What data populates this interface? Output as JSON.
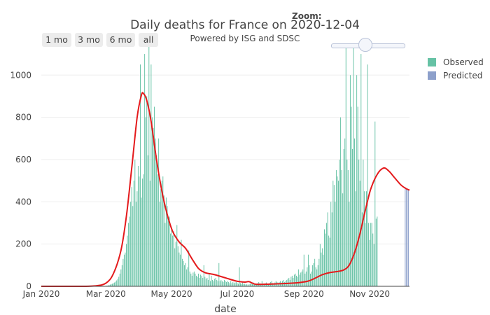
{
  "title": "Daily deaths for France on 2020-12-04",
  "subtitle": "Powered by ISG and SDSC",
  "zoom": {
    "label": "Zoom:",
    "level": 0.5
  },
  "range_buttons": [
    "1 mo",
    "3 mo",
    "6 mo",
    "all"
  ],
  "legend": [
    {
      "label": "Observed",
      "color": "#66c2a5"
    },
    {
      "label": "Predicted",
      "color": "#8da0cb"
    }
  ],
  "colors": {
    "observed": "#66c2a5",
    "predicted": "#8da0cb",
    "fit": "#e41a1c",
    "grid": "#eeeeee"
  },
  "chart_data": {
    "type": "bar",
    "xlabel": "date",
    "x_ticks": [
      "Jan 2020",
      "Mar 2020",
      "May 2020",
      "Jul 2020",
      "Sep 2020",
      "Nov 2020"
    ],
    "x_tick_dates": [
      "2020-01-01",
      "2020-03-01",
      "2020-05-01",
      "2020-07-01",
      "2020-09-01",
      "2020-11-01"
    ],
    "y_ticks": [
      "0",
      "200",
      "400",
      "600",
      "800",
      "1000"
    ],
    "y_tick_values": [
      0,
      200,
      400,
      600,
      800,
      1000
    ],
    "ylim": [
      0,
      1150
    ],
    "xlim": [
      "2020-01-01",
      "2020-12-08"
    ],
    "observed": {
      "name": "Observed",
      "start_date": "2020-03-01",
      "values": [
        2,
        3,
        4,
        6,
        8,
        10,
        12,
        15,
        18,
        22,
        28,
        35,
        45,
        60,
        80,
        100,
        130,
        150,
        160,
        200,
        240,
        300,
        330,
        400,
        470,
        380,
        500,
        600,
        400,
        450,
        570,
        520,
        1050,
        420,
        510,
        530,
        1100,
        800,
        900,
        620,
        1150,
        500,
        1050,
        800,
        750,
        850,
        700,
        620,
        530,
        700,
        400,
        460,
        500,
        520,
        430,
        300,
        420,
        380,
        310,
        330,
        250,
        280,
        240,
        260,
        180,
        210,
        290,
        190,
        160,
        150,
        220,
        130,
        120,
        100,
        110,
        80,
        90,
        170,
        70,
        60,
        50,
        65,
        70,
        60,
        50,
        45,
        60,
        40,
        55,
        50,
        40,
        100,
        45,
        35,
        40,
        30,
        60,
        25,
        50,
        30,
        25,
        35,
        40,
        30,
        25,
        110,
        25,
        30,
        25,
        20,
        30,
        25,
        20,
        25,
        20,
        15,
        25,
        15,
        20,
        15,
        18,
        20,
        15,
        12,
        90,
        15,
        12,
        18,
        10,
        12,
        8,
        10,
        5,
        10,
        12,
        15,
        10,
        18,
        8,
        10,
        12,
        15,
        20,
        15,
        12,
        25,
        10,
        12,
        15,
        18,
        12,
        10,
        15,
        20,
        25,
        15,
        12,
        18,
        25,
        20,
        15,
        20,
        25,
        18,
        25,
        30,
        20,
        25,
        30,
        35,
        40,
        30,
        45,
        50,
        40,
        55,
        60,
        50,
        45,
        80,
        55,
        65,
        70,
        80,
        150,
        60,
        70,
        90,
        150,
        100,
        60,
        70,
        100,
        110,
        130,
        90,
        80,
        100,
        130,
        200,
        160,
        180,
        150,
        270,
        250,
        300,
        350,
        240,
        230,
        400,
        350,
        500,
        480,
        400,
        550,
        520,
        500,
        600,
        800,
        550,
        440,
        650,
        700,
        1150,
        600,
        550,
        400,
        1000,
        850,
        650,
        1150,
        700,
        450,
        1000,
        850,
        600,
        500,
        1100,
        350,
        600,
        450,
        300,
        450,
        1050,
        300,
        220,
        300,
        300,
        250,
        200,
        780,
        320,
        330
      ]
    },
    "predicted": {
      "name": "Predicted",
      "start_date": "2020-12-04",
      "values": [
        470,
        465,
        460,
        455
      ]
    },
    "fit_line": {
      "points": [
        [
          "2020-01-01",
          0
        ],
        [
          "2020-02-01",
          0
        ],
        [
          "2020-02-20",
          2
        ],
        [
          "2020-03-01",
          15
        ],
        [
          "2020-03-08",
          60
        ],
        [
          "2020-03-15",
          170
        ],
        [
          "2020-03-20",
          330
        ],
        [
          "2020-03-25",
          560
        ],
        [
          "2020-03-30",
          800
        ],
        [
          "2020-04-03",
          905
        ],
        [
          "2020-04-05",
          912
        ],
        [
          "2020-04-08",
          880
        ],
        [
          "2020-04-12",
          780
        ],
        [
          "2020-04-17",
          600
        ],
        [
          "2020-04-22",
          450
        ],
        [
          "2020-04-27",
          340
        ],
        [
          "2020-05-02",
          260
        ],
        [
          "2020-05-08",
          210
        ],
        [
          "2020-05-14",
          180
        ],
        [
          "2020-05-20",
          130
        ],
        [
          "2020-05-26",
          85
        ],
        [
          "2020-06-01",
          65
        ],
        [
          "2020-06-10",
          55
        ],
        [
          "2020-06-20",
          40
        ],
        [
          "2020-06-30",
          25
        ],
        [
          "2020-07-08",
          20
        ],
        [
          "2020-07-12",
          22
        ],
        [
          "2020-07-18",
          10
        ],
        [
          "2020-07-28",
          10
        ],
        [
          "2020-08-08",
          12
        ],
        [
          "2020-08-18",
          14
        ],
        [
          "2020-08-28",
          18
        ],
        [
          "2020-09-05",
          25
        ],
        [
          "2020-09-12",
          40
        ],
        [
          "2020-09-18",
          55
        ],
        [
          "2020-09-25",
          65
        ],
        [
          "2020-10-02",
          70
        ],
        [
          "2020-10-08",
          78
        ],
        [
          "2020-10-13",
          100
        ],
        [
          "2020-10-18",
          160
        ],
        [
          "2020-10-23",
          250
        ],
        [
          "2020-10-28",
          360
        ],
        [
          "2020-11-02",
          460
        ],
        [
          "2020-11-08",
          530
        ],
        [
          "2020-11-14",
          560
        ],
        [
          "2020-11-19",
          545
        ],
        [
          "2020-11-24",
          515
        ],
        [
          "2020-11-30",
          480
        ],
        [
          "2020-12-04",
          465
        ],
        [
          "2020-12-08",
          455
        ]
      ]
    }
  }
}
